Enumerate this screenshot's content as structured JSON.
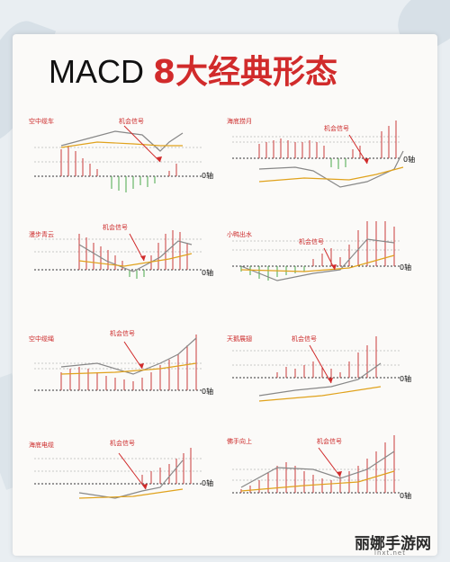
{
  "title": {
    "main": "MACD",
    "highlight": "8大经典形态"
  },
  "signal_label": "机会信号",
  "zero_label": "0轴",
  "panels": [
    {
      "name": "空中缆车"
    },
    {
      "name": "海底捞月"
    },
    {
      "name": "漫步青云"
    },
    {
      "name": "小鸭出水"
    },
    {
      "name": "空中缆绳"
    },
    {
      "name": "天鹅展翅"
    },
    {
      "name": "海底电缆"
    },
    {
      "name": "佛手向上"
    }
  ],
  "watermark": {
    "name": "丽娜手游网",
    "url": "lnxt.net"
  },
  "colors": {
    "accent": "#d12b2b",
    "bar_up": "#c83a3a",
    "bar_down": "#4aa84a",
    "dif_line": "#888888",
    "dea_line": "#e0a21c"
  }
}
